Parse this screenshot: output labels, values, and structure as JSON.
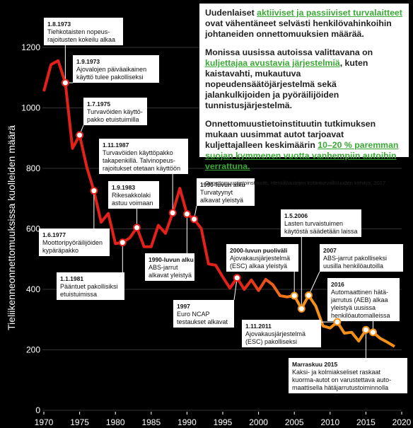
{
  "chart_data": {
    "type": "line",
    "y_label": "Tieliikenneonnettomuuksissa kuolleiden määrä",
    "x": [
      1970,
      1971,
      1972,
      1973,
      1974,
      1975,
      1976,
      1977,
      1978,
      1979,
      1980,
      1981,
      1982,
      1983,
      1984,
      1985,
      1986,
      1987,
      1988,
      1989,
      1990,
      1991,
      1992,
      1993,
      1994,
      1995,
      1996,
      1997,
      1998,
      1999,
      2000,
      2001,
      2002,
      2003,
      2004,
      2005,
      2006,
      2007,
      2008,
      2009,
      2010,
      2011,
      2012,
      2013,
      2014,
      2015,
      2016,
      2017,
      2018,
      2019
    ],
    "values": [
      1055,
      1143,
      1156,
      1083,
      866,
      910,
      804,
      726,
      622,
      651,
      551,
      555,
      570,
      604,
      541,
      541,
      612,
      585,
      653,
      734,
      649,
      632,
      601,
      484,
      480,
      441,
      404,
      438,
      400,
      431,
      396,
      433,
      415,
      379,
      375,
      379,
      336,
      380,
      344,
      279,
      272,
      292,
      255,
      258,
      229,
      266,
      258,
      238,
      225,
      211
    ],
    "colors": [
      "#e3201a",
      "#f39019"
    ],
    "xlim": [
      1970,
      2020
    ],
    "xticks": [
      1970,
      1975,
      1980,
      1985,
      1990,
      1995,
      2000,
      2005,
      2010,
      2015,
      2020
    ],
    "ylim": [
      0,
      1200
    ],
    "yticks": [
      0,
      200,
      400,
      600,
      800,
      1000,
      1200
    ],
    "grid": true,
    "annotations": [
      {
        "title": "1.8.1973",
        "lines": [
          "Tiehkotaisten nopeus-",
          "rajoitusten kokeilu alkaa"
        ]
      },
      {
        "title": "1.9.1973",
        "lines": [
          "Ajovalojen päiväaikainen",
          "käyttö tulee pakolliseksi"
        ]
      },
      {
        "title": "1.7.1975",
        "lines": [
          "Turvavöiden käyttö-",
          "pakko etuistuimilla"
        ]
      },
      {
        "title": "1.11.1987",
        "lines": [
          "Turvavöiden käyttöpakko",
          "takapenkillä. Talvinopeus-",
          "rajoitukset otetaan käyttöön"
        ]
      },
      {
        "title": "1.9.1983",
        "lines": [
          "Rikesakkolaki",
          "astuu voimaan"
        ]
      },
      {
        "title": "1990-luvun alku",
        "lines": [
          "Turvatyynyt",
          "alkavat yleistyä"
        ]
      },
      {
        "title": "1.6.1977",
        "lines": [
          "Moottoripyöräilijöiden",
          "kypäräpakko"
        ]
      },
      {
        "title": "1990-luvun alku",
        "lines": [
          "ABS-jarrut",
          "alkavat yleistyä"
        ]
      },
      {
        "title": "1.1.1981",
        "lines": [
          "Pääntuet pakollisiksi",
          "etuistuimissa"
        ]
      },
      {
        "title": "2000-luvun puoliväli",
        "lines": [
          "Ajovakausjärjestelmä",
          "(ESC) alkaa yleistyä"
        ]
      },
      {
        "title": "1.5.2006",
        "lines": [
          "Lasten turvaistuimen",
          "käytöstä säädetään laissa"
        ]
      },
      {
        "title": "2007",
        "lines": [
          "ABS-jarrut pakolliseksi",
          "uusilla henkilöautoilla"
        ]
      },
      {
        "title": "1997",
        "lines": [
          "Euro NCAP",
          "testaukset alkavat"
        ]
      },
      {
        "title": "2016",
        "lines": [
          "Automaattinen hätä-",
          "jarrutus (AEB) alkaa",
          "yleistyä uusissa",
          "henkilöautomalleissa"
        ]
      },
      {
        "title": "1.11.2011",
        "lines": [
          "Ajovakausjärjestelmä",
          "(ESC) pakolliseksi"
        ]
      },
      {
        "title": "Marraskuu 2015",
        "lines": [
          "Kaksi- ja kolmiakseliset raskaat",
          "kuorma-autot on varustettava auto-",
          "maattisella hätäjarrutustoiminnolla"
        ]
      }
    ]
  },
  "info": {
    "paragraphs": [
      [
        {
          "text": "Uudenlaiset "
        },
        {
          "text": "aktiiviset ja passiiviset turvalaitteet",
          "highlight": true
        },
        {
          "text": " ovat vähentäneet selvästi henkilövahinkoihin johtaneiden onnettomuuksien määrää."
        }
      ],
      [
        {
          "text": "Monissa uusissa autoissa valittavana on "
        },
        {
          "text": "kuljettajaa avustavia järjestelmiä",
          "highlight": true
        },
        {
          "text": ", kuten kaistavahti, mukautuva nopeudensäätöjärjestelmä sekä jalankulkijoiden ja pyöräilijöiden tunnistusjärjestelmä."
        }
      ],
      [
        {
          "text": "Onnettomuustietoinstituutin tutkimuksen mukaan uusimmat autot tarjoavat kuljettajalleen keskimäärin "
        },
        {
          "text": "10–20 % paremman suojan kymmenen vuotta vanhempiin autoihin verrattuna.",
          "highlight": true
        }
      ]
    ],
    "source": "Onnettomuustietoinstituutti, Henkilöautojen kolariturvallisuuden kehitys, 2017"
  }
}
